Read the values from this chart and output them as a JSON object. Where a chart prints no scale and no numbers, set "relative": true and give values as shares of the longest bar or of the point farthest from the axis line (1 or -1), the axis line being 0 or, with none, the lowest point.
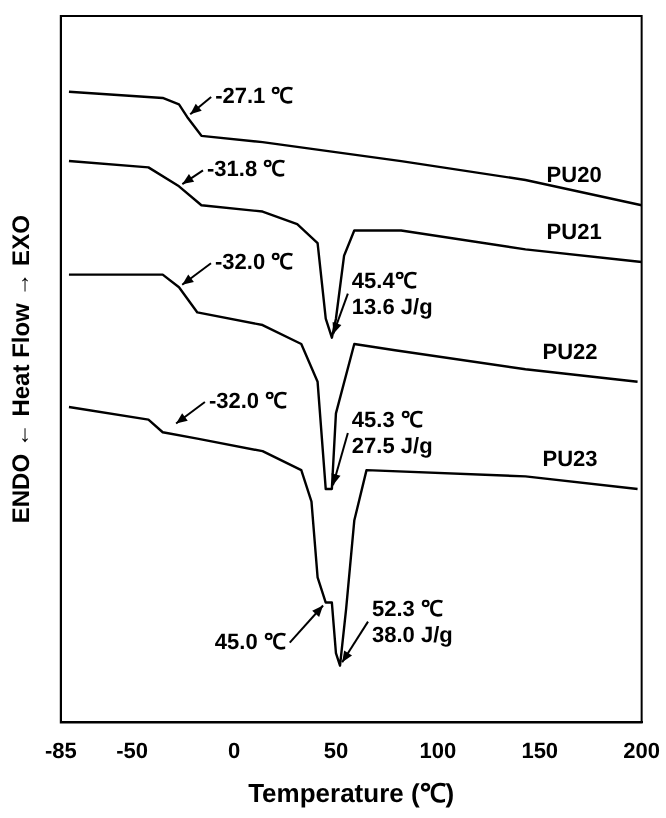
{
  "chart_data": {
    "type": "line",
    "relative": true,
    "xlabel": "Temperature (℃)",
    "ylabel": "ENDO ← Heat Flow → EXO",
    "marker": "none",
    "xlim": [
      -85,
      200
    ],
    "xticks": [
      -85,
      -50,
      0,
      50,
      100,
      150,
      200
    ],
    "series": [
      {
        "name": "PU20",
        "color": "#000000",
        "x": [
          -81,
          -35,
          -27,
          -23,
          -16,
          14,
          82,
          143,
          200
        ],
        "values": [
          1.0,
          0.99,
          0.98,
          0.96,
          0.93,
          0.92,
          0.89,
          0.86,
          0.82
        ]
      },
      {
        "name": "PU21",
        "color": "#000000",
        "x": [
          -81,
          -42,
          -27,
          -16,
          14,
          31,
          41,
          43,
          45,
          48,
          50,
          54,
          59,
          82,
          143,
          200
        ],
        "values": [
          0.89,
          0.88,
          0.85,
          0.82,
          0.81,
          0.79,
          0.76,
          0.7,
          0.64,
          0.61,
          0.64,
          0.74,
          0.78,
          0.78,
          0.75,
          0.73
        ]
      },
      {
        "name": "PU22",
        "color": "#000000",
        "x": [
          -81,
          -35,
          -27,
          -18,
          14,
          33,
          41,
          45,
          48,
          50,
          59,
          79,
          143,
          198
        ],
        "values": [
          0.71,
          0.71,
          0.69,
          0.65,
          0.63,
          0.6,
          0.54,
          0.37,
          0.37,
          0.49,
          0.6,
          0.59,
          0.56,
          0.54
        ]
      },
      {
        "name": "PU23",
        "color": "#000000",
        "x": [
          -81,
          -42,
          -35,
          -18,
          14,
          33,
          38,
          41,
          45,
          48,
          50,
          52,
          55,
          59,
          65,
          143,
          198
        ],
        "values": [
          0.5,
          0.48,
          0.46,
          0.45,
          0.43,
          0.4,
          0.35,
          0.23,
          0.19,
          0.19,
          0.11,
          0.09,
          0.18,
          0.32,
          0.4,
          0.39,
          0.37
        ]
      }
    ],
    "annotations": [
      {
        "text": "-27.1 ℃",
        "x": -23,
        "y": 0.96
      },
      {
        "text": "-31.8 ℃",
        "x": -27,
        "y": 0.85
      },
      {
        "text": "-32.0 ℃",
        "x": -27,
        "y": 0.69
      },
      {
        "text": "45.4℃\n13.6 J/g",
        "x": 48,
        "y": 0.61
      },
      {
        "text": "-32.0 ℃",
        "x": -30,
        "y": 0.47
      },
      {
        "text": "45.3 ℃\n27.5 J/g",
        "x": 48,
        "y": 0.37
      },
      {
        "text": "45.0 ℃",
        "x": 45,
        "y": 0.19
      },
      {
        "text": "52.3 ℃\n38.0 J/g",
        "x": 52,
        "y": 0.09
      }
    ]
  }
}
